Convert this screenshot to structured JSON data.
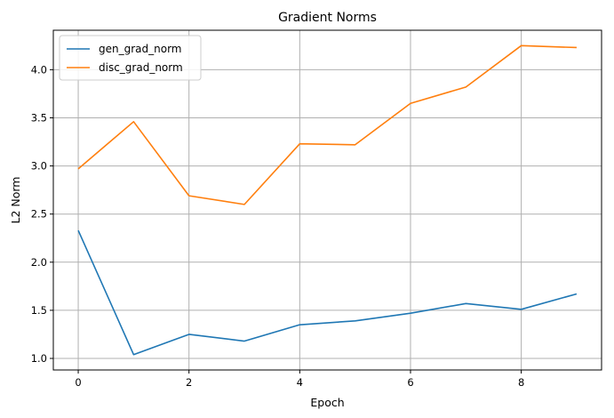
{
  "chart_data": {
    "type": "line",
    "title": "Gradient Norms",
    "xlabel": "Epoch",
    "ylabel": "L2 Norm",
    "x": [
      0,
      1,
      2,
      3,
      4,
      5,
      6,
      7,
      8,
      9
    ],
    "xlim": [
      -0.45,
      9.45
    ],
    "ylim": [
      0.88,
      4.41
    ],
    "xticks": [
      0,
      2,
      4,
      6,
      8
    ],
    "yticks": [
      1.0,
      1.5,
      2.0,
      2.5,
      3.0,
      3.5,
      4.0
    ],
    "ytick_labels": [
      "1.0",
      "1.5",
      "2.0",
      "2.5",
      "3.0",
      "3.5",
      "4.0"
    ],
    "grid": true,
    "legend_position": "top-left",
    "series": [
      {
        "name": "gen_grad_norm",
        "color": "#1f77b4",
        "values": [
          2.33,
          1.04,
          1.25,
          1.18,
          1.35,
          1.39,
          1.47,
          1.57,
          1.51,
          1.67
        ]
      },
      {
        "name": "disc_grad_norm",
        "color": "#ff7f0e",
        "values": [
          2.97,
          3.46,
          2.69,
          2.6,
          3.23,
          3.22,
          3.65,
          3.82,
          4.25,
          4.23
        ]
      }
    ]
  }
}
